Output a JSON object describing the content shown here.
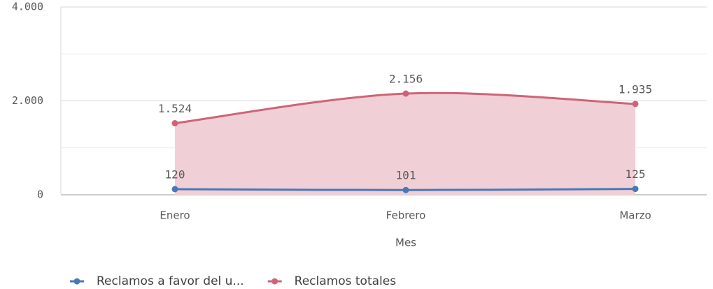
{
  "chart_data": {
    "type": "line",
    "x_label": "Mes",
    "categories": [
      "Enero",
      "Febrero",
      "Marzo"
    ],
    "series": [
      {
        "name": "Reclamos a favor del u...",
        "color": "#4a78b5",
        "values": [
          120,
          101,
          125
        ]
      },
      {
        "name": "Reclamos totales",
        "color": "#cf6478",
        "fill": "#f0d0d6",
        "area": true,
        "values": [
          1524,
          2156,
          1935
        ],
        "value_labels": [
          "1.524",
          "2.156",
          "1.935"
        ]
      }
    ],
    "ylim": [
      0,
      4000
    ],
    "yticks": [
      {
        "value": 0,
        "label": "0"
      },
      {
        "value": 2000,
        "label": "2.000"
      },
      {
        "value": 4000,
        "label": "4.000"
      }
    ],
    "grid": true,
    "minor_grid": true,
    "legend": "bottom-left"
  }
}
